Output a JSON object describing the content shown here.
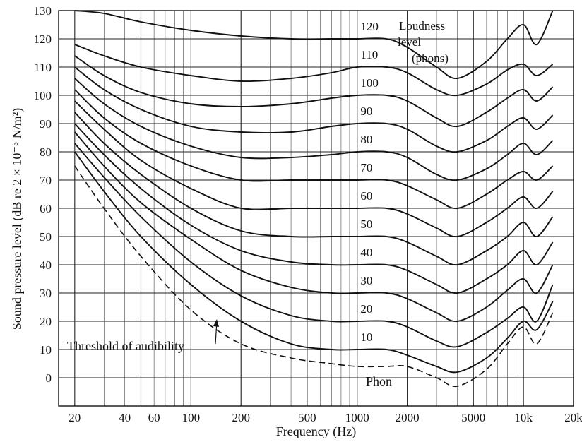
{
  "chart_data": {
    "type": "line",
    "title": "",
    "xlabel": "Frequency (Hz)",
    "ylabel": "Sound pressure level (dB re 2 × 10⁻⁵ N/m²)",
    "x_scale": "log",
    "xlim": [
      16,
      20000
    ],
    "ylim": [
      -10,
      130
    ],
    "grid": true,
    "x_ticks": [
      {
        "value": 20,
        "label": "20"
      },
      {
        "value": 40,
        "label": "40"
      },
      {
        "value": 60,
        "label": "60"
      },
      {
        "value": 100,
        "label": "100"
      },
      {
        "value": 200,
        "label": "200"
      },
      {
        "value": 500,
        "label": "500"
      },
      {
        "value": 1000,
        "label": "1000"
      },
      {
        "value": 2000,
        "label": "2000"
      },
      {
        "value": 5000,
        "label": "5000"
      },
      {
        "value": 10000,
        "label": "10k"
      },
      {
        "value": 20000,
        "label": "20k"
      }
    ],
    "y_ticks": [
      0,
      10,
      20,
      30,
      40,
      50,
      60,
      70,
      80,
      90,
      100,
      110,
      120,
      130
    ],
    "legend_title": [
      "Loudness",
      "level",
      "(phons)"
    ],
    "series": [
      {
        "name": "10",
        "x": [
          20,
          30,
          50,
          100,
          200,
          400,
          700,
          1000,
          1500,
          2000,
          3000,
          4000,
          6000,
          8000,
          10000,
          12000,
          15000
        ],
        "y": [
          80,
          66,
          50,
          33,
          20,
          12,
          10,
          10,
          10,
          8,
          4,
          2,
          7,
          14,
          20,
          17,
          27
        ]
      },
      {
        "name": "20",
        "x": [
          20,
          30,
          50,
          100,
          200,
          400,
          700,
          1000,
          1500,
          2000,
          3000,
          4000,
          6000,
          8000,
          10000,
          12000,
          15000
        ],
        "y": [
          83,
          71,
          57,
          41,
          29,
          22,
          20,
          20,
          20,
          18,
          13,
          11,
          16,
          21,
          25,
          20,
          33
        ]
      },
      {
        "name": "30",
        "x": [
          20,
          30,
          50,
          100,
          200,
          400,
          700,
          1000,
          1500,
          2000,
          3000,
          4000,
          6000,
          8000,
          10000,
          12000,
          15000
        ],
        "y": [
          87,
          75,
          62,
          49,
          38,
          32,
          30,
          30,
          30,
          28,
          23,
          20,
          25,
          31,
          35,
          30,
          40
        ]
      },
      {
        "name": "40",
        "x": [
          20,
          30,
          50,
          100,
          200,
          400,
          700,
          1000,
          1500,
          2000,
          3000,
          4000,
          6000,
          8000,
          10000,
          12000,
          15000
        ],
        "y": [
          90,
          79,
          67,
          54,
          45,
          41,
          40,
          40,
          40,
          38,
          33,
          30,
          35,
          40,
          45,
          40,
          48
        ]
      },
      {
        "name": "50",
        "x": [
          20,
          30,
          50,
          100,
          200,
          400,
          700,
          1000,
          1500,
          2000,
          3000,
          4000,
          6000,
          8000,
          10000,
          12000,
          15000
        ],
        "y": [
          94,
          83,
          72,
          60,
          52,
          50,
          50,
          50,
          50,
          48,
          43,
          40,
          45,
          50,
          55,
          50,
          57
        ]
      },
      {
        "name": "60",
        "x": [
          20,
          30,
          50,
          100,
          200,
          400,
          700,
          1000,
          1500,
          2000,
          3000,
          4000,
          6000,
          8000,
          10000,
          12000,
          15000
        ],
        "y": [
          98,
          88,
          77,
          67,
          60,
          60,
          60,
          60,
          60,
          58,
          53,
          50,
          55,
          60,
          64,
          60,
          66
        ]
      },
      {
        "name": "70",
        "x": [
          20,
          30,
          50,
          100,
          200,
          400,
          700,
          1000,
          1500,
          2000,
          3000,
          4000,
          6000,
          8000,
          10000,
          12000,
          15000
        ],
        "y": [
          102,
          92,
          83,
          75,
          70,
          70,
          70,
          70,
          70,
          68,
          63,
          60,
          65,
          70,
          73,
          70,
          75
        ]
      },
      {
        "name": "80",
        "x": [
          20,
          30,
          50,
          100,
          200,
          400,
          700,
          1000,
          1500,
          2000,
          3000,
          4000,
          6000,
          8000,
          10000,
          12000,
          15000
        ],
        "y": [
          106,
          97,
          89,
          82,
          78,
          78,
          79,
          80,
          80,
          78,
          72,
          70,
          74,
          79,
          83,
          79,
          84
        ]
      },
      {
        "name": "90",
        "x": [
          20,
          30,
          50,
          100,
          200,
          400,
          700,
          1000,
          1500,
          2000,
          3000,
          4000,
          6000,
          8000,
          10000,
          12000,
          15000
        ],
        "y": [
          110,
          102,
          95,
          89,
          87,
          87,
          89,
          90,
          90,
          88,
          82,
          80,
          84,
          89,
          92,
          88,
          93
        ]
      },
      {
        "name": "100",
        "x": [
          20,
          30,
          50,
          100,
          200,
          400,
          700,
          1000,
          1500,
          2000,
          3000,
          4000,
          6000,
          8000,
          10000,
          12000,
          15000
        ],
        "y": [
          114,
          107,
          101,
          97,
          96,
          97,
          99,
          100,
          100,
          98,
          92,
          89,
          94,
          99,
          102,
          98,
          103
        ]
      },
      {
        "name": "110",
        "x": [
          20,
          30,
          50,
          100,
          200,
          400,
          700,
          1000,
          1500,
          2000,
          3000,
          4000,
          6000,
          8000,
          10000,
          12000,
          15000
        ],
        "y": [
          118,
          114,
          110,
          107,
          105,
          106,
          108,
          110,
          110,
          108,
          102,
          100,
          104,
          109,
          111,
          107,
          111
        ]
      },
      {
        "name": "120",
        "x": [
          20,
          30,
          50,
          100,
          200,
          400,
          700,
          1000,
          1500,
          2000,
          3000,
          4000,
          6000,
          8000,
          10000,
          12000,
          15000
        ],
        "y": [
          130,
          129,
          126,
          123,
          121,
          120,
          120,
          120,
          120,
          117,
          110,
          106,
          112,
          120,
          125,
          118,
          130
        ]
      },
      {
        "name": "Threshold of audibility",
        "dashed": true,
        "x": [
          20,
          30,
          50,
          100,
          200,
          400,
          700,
          1000,
          1500,
          2000,
          3000,
          4000,
          6000,
          8000,
          10000,
          12000,
          15000
        ],
        "y": [
          75,
          60,
          43,
          24,
          12,
          7,
          5,
          4,
          4,
          4,
          0,
          -3,
          3,
          12,
          18,
          12,
          23
        ]
      }
    ],
    "annotations": {
      "threshold": "Threshold of audibility",
      "phon": "Phon"
    }
  }
}
